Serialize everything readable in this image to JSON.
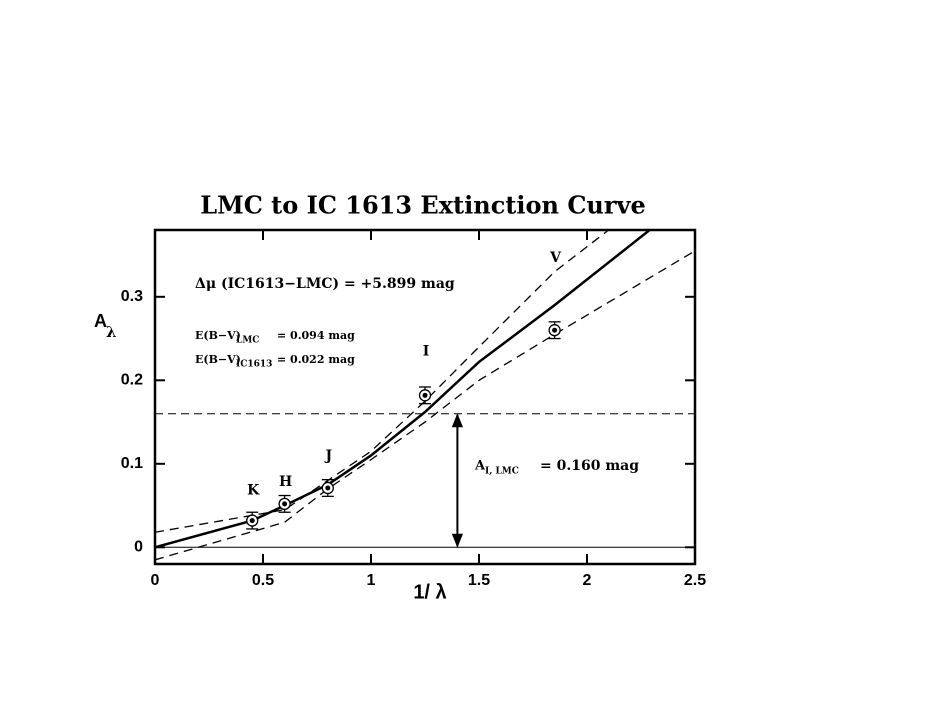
{
  "chart_data": {
    "type": "scatter",
    "title": "LMC to IC 1613 Extinction Curve",
    "x_label": "1/ λ",
    "y_label": "A",
    "y_label_sub": "λ",
    "xlim": [
      0,
      2.5
    ],
    "ylim": [
      -0.02,
      0.38
    ],
    "xticks": [
      0,
      0.5,
      1,
      1.5,
      2,
      2.5
    ],
    "yticks": [
      0,
      0.1,
      0.2,
      0.3
    ],
    "points": {
      "labels": [
        "K",
        "H",
        "J",
        "I",
        "V"
      ],
      "x": [
        0.45,
        0.6,
        0.8,
        1.25,
        1.85
      ],
      "values": [
        0.032,
        0.052,
        0.071,
        0.182,
        0.26
      ],
      "errors": [
        0.01,
        0.01,
        0.01,
        0.01,
        0.01
      ]
    },
    "curves": [
      {
        "style": "solid",
        "x": [
          0,
          0.45,
          0.6,
          0.8,
          1.0,
          1.25,
          1.5,
          1.85,
          2.29
        ],
        "values": [
          0,
          0.032,
          0.05,
          0.075,
          0.11,
          0.162,
          0.222,
          0.29,
          0.38
        ]
      },
      {
        "style": "dashed",
        "x": [
          0,
          0.6,
          0.8,
          1.0,
          1.25,
          1.5,
          1.85,
          2.1
        ],
        "values": [
          0.018,
          0.045,
          0.08,
          0.115,
          0.175,
          0.24,
          0.33,
          0.38
        ]
      },
      {
        "style": "dashed",
        "x": [
          0,
          0.6,
          0.8,
          1.0,
          1.25,
          1.5,
          1.85,
          2.5
        ],
        "values": [
          -0.015,
          0.03,
          0.07,
          0.105,
          0.15,
          0.2,
          0.255,
          0.355
        ]
      }
    ],
    "zero_line": 0,
    "extinction_marker": {
      "x": 1.4,
      "value": 0.16,
      "label": "A",
      "label_sub": "I, LMC",
      "text": "= 0.160 mag"
    },
    "annotations": {
      "distance": "Δμ (IC1613−LMC) = +5.899 mag",
      "ebv_lmc": {
        "main": "E(B−V)",
        "sub": "LMC",
        "text": "= 0.094 mag"
      },
      "ebv_ic": {
        "main": "E(B−V)",
        "sub": "IC1613",
        "text": "= 0.022 mag"
      }
    }
  }
}
